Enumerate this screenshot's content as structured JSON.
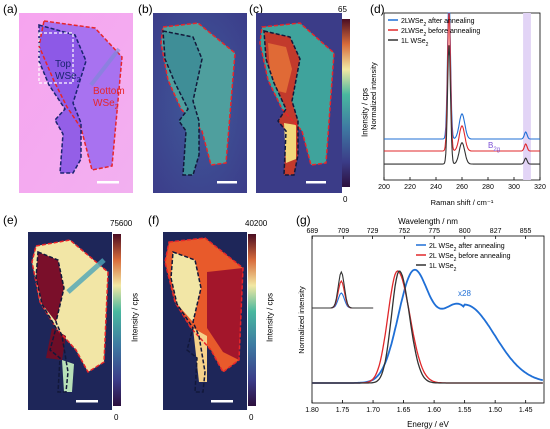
{
  "panels": {
    "a": {
      "label": "(a)",
      "top_text": "Top",
      "wse_text": "WSe",
      "bottom_text": "Bottom",
      "bottom_wse_text": "WSe",
      "sub2": "2"
    },
    "b": {
      "label": "(b)"
    },
    "c": {
      "label": "(c)"
    },
    "d": {
      "label": "(d)"
    },
    "e": {
      "label": "(e)"
    },
    "f": {
      "label": "(f)"
    },
    "g": {
      "label": "(g)"
    }
  },
  "colorbars": {
    "c": {
      "max": "65",
      "min": "0",
      "label": "Intensity / cps"
    },
    "e": {
      "max": "75600",
      "min": "0",
      "label": "Intensity / cps"
    },
    "f": {
      "max": "40200",
      "min": "0",
      "label": "Intensity / cps"
    }
  },
  "chart_data": [
    {
      "panel": "d",
      "type": "line",
      "xlabel": "Raman shift / cm⁻¹",
      "ylabel": "Normalized intensity",
      "xlim": [
        200,
        320
      ],
      "xticks": [
        "200",
        "220",
        "240",
        "260",
        "280",
        "300",
        "320"
      ],
      "annotation": "B2g",
      "annotation_base": "B",
      "annotation_sub": "2g",
      "series": [
        {
          "name": "2LWSe2 after annealing",
          "name_base": "2LWSe",
          "name_sub": "2",
          "name_rest": " after annealing",
          "color": "#1f6fd6",
          "offset": 2
        },
        {
          "name": "2LWSe2 before annealing",
          "name_base": "2LWSe",
          "name_sub": "2",
          "name_rest": " before annealing",
          "color": "#e0282b",
          "offset": 1
        },
        {
          "name": "1L WSe2",
          "name_base": "1L WSe",
          "name_sub": "2",
          "name_rest": "",
          "color": "#333333",
          "offset": 0
        }
      ],
      "x": [
        200,
        230,
        245,
        248,
        250,
        252,
        255,
        258,
        261,
        265,
        280,
        300,
        307,
        309,
        311,
        320
      ]
    },
    {
      "panel": "g",
      "type": "line",
      "xlabel": "Energy / eV",
      "ylabel": "Normalized intensity",
      "top_xlabel": "Wavelength / nm",
      "xlim": [
        1.8,
        1.42
      ],
      "xticks": [
        "1.80",
        "1.75",
        "1.70",
        "1.65",
        "1.60",
        "1.55",
        "1.50",
        "1.45"
      ],
      "top_xticks": [
        "689",
        "709",
        "729",
        "752",
        "775",
        "800",
        "827",
        "855"
      ],
      "annotation": "x28",
      "series": [
        {
          "name": "2L WSe2 after annealing",
          "name_base": "2L WSe",
          "name_sub": "2",
          "name_rest": " after annealing",
          "color": "#1f6fd6",
          "peak": 1.635,
          "width": 0.06
        },
        {
          "name": "2L WSe2 before annealing",
          "name_base": "2L WSe",
          "name_sub": "2",
          "name_rest": " before annealing",
          "color": "#e0282b",
          "peak": 1.66,
          "width": 0.022
        },
        {
          "name": "1L WSe2",
          "name_base": "1L WSe",
          "name_sub": "2",
          "name_rest": "",
          "color": "#333333",
          "peak": 1.657,
          "width": 0.018
        }
      ]
    }
  ]
}
